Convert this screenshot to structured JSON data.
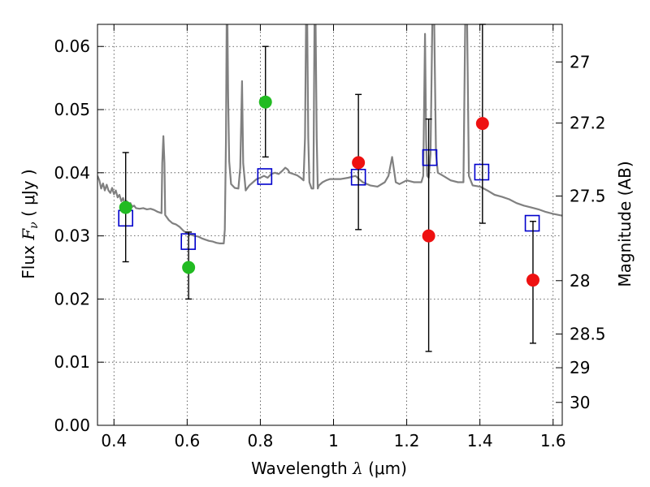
{
  "chart_data": {
    "type": "scatter",
    "xlabel": {
      "main": "Wavelength  ",
      "symbol": "λ",
      "unit": " (μm)"
    },
    "ylabel": {
      "main": "Flux  ",
      "symbol": "F",
      "sub": "ν",
      "unit": "  ( μJy )"
    },
    "y2label": "Magnitude (AB)",
    "xlim": [
      0.355,
      1.625
    ],
    "ylim": [
      0.0,
      0.0635
    ],
    "grid": true,
    "xticks": [
      {
        "value": 0.4,
        "label": "0.4"
      },
      {
        "value": 0.6,
        "label": "0.6"
      },
      {
        "value": 0.8,
        "label": "0.8"
      },
      {
        "value": 1.0,
        "label": "1"
      },
      {
        "value": 1.2,
        "label": "1.2"
      },
      {
        "value": 1.4,
        "label": "1.4"
      },
      {
        "value": 1.6,
        "label": "1.6"
      }
    ],
    "yticks": [
      {
        "value": 0.0,
        "label": "0.00"
      },
      {
        "value": 0.01,
        "label": "0.01"
      },
      {
        "value": 0.02,
        "label": "0.02"
      },
      {
        "value": 0.03,
        "label": "0.03"
      },
      {
        "value": 0.04,
        "label": "0.04"
      },
      {
        "value": 0.05,
        "label": "0.05"
      },
      {
        "value": 0.06,
        "label": "0.06"
      }
    ],
    "y2ticks": [
      {
        "value": 27,
        "label": "27"
      },
      {
        "value": 27.2,
        "label": "27.2"
      },
      {
        "value": 27.5,
        "label": "27.5"
      },
      {
        "value": 28,
        "label": "28"
      },
      {
        "value": 28.5,
        "label": "28.5"
      },
      {
        "value": 29,
        "label": "29"
      },
      {
        "value": 30,
        "label": "30"
      }
    ],
    "colors": {
      "template": "#808080",
      "model": "#0000cc",
      "detected": "#22bb22",
      "upper": "#ee1111",
      "errorbar": "#000000"
    },
    "series": [
      {
        "kind": "line",
        "points": [
          [
            0.355,
            0.0395
          ],
          [
            0.36,
            0.0388
          ],
          [
            0.365,
            0.0375
          ],
          [
            0.37,
            0.0383
          ],
          [
            0.375,
            0.0372
          ],
          [
            0.38,
            0.0381
          ],
          [
            0.385,
            0.0372
          ],
          [
            0.39,
            0.0368
          ],
          [
            0.395,
            0.0376
          ],
          [
            0.4,
            0.0366
          ],
          [
            0.405,
            0.0372
          ],
          [
            0.41,
            0.0361
          ],
          [
            0.415,
            0.0365
          ],
          [
            0.42,
            0.0355
          ],
          [
            0.425,
            0.036
          ],
          [
            0.43,
            0.035
          ],
          [
            0.435,
            0.0355
          ],
          [
            0.44,
            0.0348
          ],
          [
            0.445,
            0.0352
          ],
          [
            0.45,
            0.0346
          ],
          [
            0.455,
            0.0348
          ],
          [
            0.46,
            0.0344
          ],
          [
            0.47,
            0.0343
          ],
          [
            0.48,
            0.0344
          ],
          [
            0.49,
            0.0342
          ],
          [
            0.5,
            0.0343
          ],
          [
            0.51,
            0.0341
          ],
          [
            0.52,
            0.0338
          ],
          [
            0.53,
            0.0336
          ],
          [
            0.532,
            0.0415
          ],
          [
            0.535,
            0.0458
          ],
          [
            0.538,
            0.0415
          ],
          [
            0.54,
            0.0333
          ],
          [
            0.55,
            0.0325
          ],
          [
            0.56,
            0.032
          ],
          [
            0.57,
            0.0318
          ],
          [
            0.58,
            0.0314
          ],
          [
            0.59,
            0.0308
          ],
          [
            0.6,
            0.0304
          ],
          [
            0.61,
            0.0302
          ],
          [
            0.62,
            0.03
          ],
          [
            0.63,
            0.0299
          ],
          [
            0.64,
            0.0296
          ],
          [
            0.65,
            0.0294
          ],
          [
            0.66,
            0.0292
          ],
          [
            0.67,
            0.0291
          ],
          [
            0.68,
            0.0289
          ],
          [
            0.69,
            0.0288
          ],
          [
            0.7,
            0.0288
          ],
          [
            0.703,
            0.031
          ],
          [
            0.706,
            0.045
          ],
          [
            0.708,
            0.064
          ],
          [
            0.71,
            0.064
          ],
          [
            0.712,
            0.052
          ],
          [
            0.715,
            0.0418
          ],
          [
            0.72,
            0.0382
          ],
          [
            0.73,
            0.0376
          ],
          [
            0.74,
            0.0375
          ],
          [
            0.745,
            0.0408
          ],
          [
            0.75,
            0.0545
          ],
          [
            0.753,
            0.0415
          ],
          [
            0.76,
            0.0372
          ],
          [
            0.77,
            0.038
          ],
          [
            0.78,
            0.0385
          ],
          [
            0.79,
            0.039
          ],
          [
            0.8,
            0.0392
          ],
          [
            0.81,
            0.0395
          ],
          [
            0.82,
            0.0392
          ],
          [
            0.83,
            0.0398
          ],
          [
            0.84,
            0.04
          ],
          [
            0.85,
            0.0398
          ],
          [
            0.86,
            0.0403
          ],
          [
            0.868,
            0.0408
          ],
          [
            0.875,
            0.0405
          ],
          [
            0.88,
            0.04
          ],
          [
            0.89,
            0.0398
          ],
          [
            0.9,
            0.0396
          ],
          [
            0.91,
            0.0392
          ],
          [
            0.918,
            0.0388
          ],
          [
            0.922,
            0.0455
          ],
          [
            0.925,
            0.064
          ],
          [
            0.928,
            0.064
          ],
          [
            0.931,
            0.0455
          ],
          [
            0.934,
            0.0385
          ],
          [
            0.94,
            0.0375
          ],
          [
            0.945,
            0.0375
          ],
          [
            0.948,
            0.064
          ],
          [
            0.951,
            0.064
          ],
          [
            0.954,
            0.0455
          ],
          [
            0.957,
            0.0375
          ],
          [
            0.96,
            0.038
          ],
          [
            0.97,
            0.0385
          ],
          [
            0.98,
            0.0388
          ],
          [
            0.99,
            0.039
          ],
          [
            1.0,
            0.039
          ],
          [
            1.02,
            0.039
          ],
          [
            1.04,
            0.0392
          ],
          [
            1.06,
            0.0395
          ],
          [
            1.08,
            0.0385
          ],
          [
            1.1,
            0.038
          ],
          [
            1.12,
            0.0378
          ],
          [
            1.14,
            0.0385
          ],
          [
            1.15,
            0.0395
          ],
          [
            1.16,
            0.0425
          ],
          [
            1.17,
            0.0385
          ],
          [
            1.18,
            0.0382
          ],
          [
            1.2,
            0.0388
          ],
          [
            1.22,
            0.0385
          ],
          [
            1.24,
            0.0385
          ],
          [
            1.245,
            0.0395
          ],
          [
            1.25,
            0.062
          ],
          [
            1.253,
            0.045
          ],
          [
            1.256,
            0.0395
          ],
          [
            1.26,
            0.0392
          ],
          [
            1.265,
            0.043
          ],
          [
            1.27,
            0.064
          ],
          [
            1.275,
            0.064
          ],
          [
            1.28,
            0.043
          ],
          [
            1.285,
            0.04
          ],
          [
            1.3,
            0.0395
          ],
          [
            1.32,
            0.0388
          ],
          [
            1.34,
            0.0385
          ],
          [
            1.355,
            0.0385
          ],
          [
            1.36,
            0.064
          ],
          [
            1.365,
            0.064
          ],
          [
            1.37,
            0.0395
          ],
          [
            1.38,
            0.038
          ],
          [
            1.4,
            0.0378
          ],
          [
            1.42,
            0.0372
          ],
          [
            1.44,
            0.0365
          ],
          [
            1.46,
            0.0362
          ],
          [
            1.48,
            0.0358
          ],
          [
            1.5,
            0.0352
          ],
          [
            1.52,
            0.0348
          ],
          [
            1.54,
            0.0345
          ],
          [
            1.56,
            0.0342
          ],
          [
            1.58,
            0.0338
          ],
          [
            1.6,
            0.0335
          ],
          [
            1.625,
            0.0332
          ]
        ]
      },
      {
        "kind": "open-square",
        "points": [
          [
            0.432,
            0.0328
          ],
          [
            0.603,
            0.0291
          ],
          [
            0.812,
            0.0394
          ],
          [
            1.068,
            0.0393
          ],
          [
            1.263,
            0.0424
          ],
          [
            1.405,
            0.0401
          ],
          [
            1.543,
            0.032
          ]
        ]
      },
      {
        "kind": "filled-circle",
        "points": [
          [
            0.432,
            0.0345
          ],
          [
            0.604,
            0.025
          ],
          [
            0.814,
            0.0512
          ]
        ],
        "errors": [
          [
            0.0259,
            0.0432
          ],
          [
            0.02,
            0.0306
          ],
          [
            0.0425,
            0.06
          ]
        ]
      },
      {
        "kind": "filled-circle",
        "points": [
          [
            1.068,
            0.0416
          ],
          [
            1.26,
            0.03
          ],
          [
            1.407,
            0.0478
          ],
          [
            1.545,
            0.023
          ]
        ],
        "errors": [
          [
            0.031,
            0.0524
          ],
          [
            0.0117,
            0.0485
          ],
          [
            0.032,
            0.0635
          ],
          [
            0.013,
            0.0323
          ]
        ]
      }
    ]
  }
}
